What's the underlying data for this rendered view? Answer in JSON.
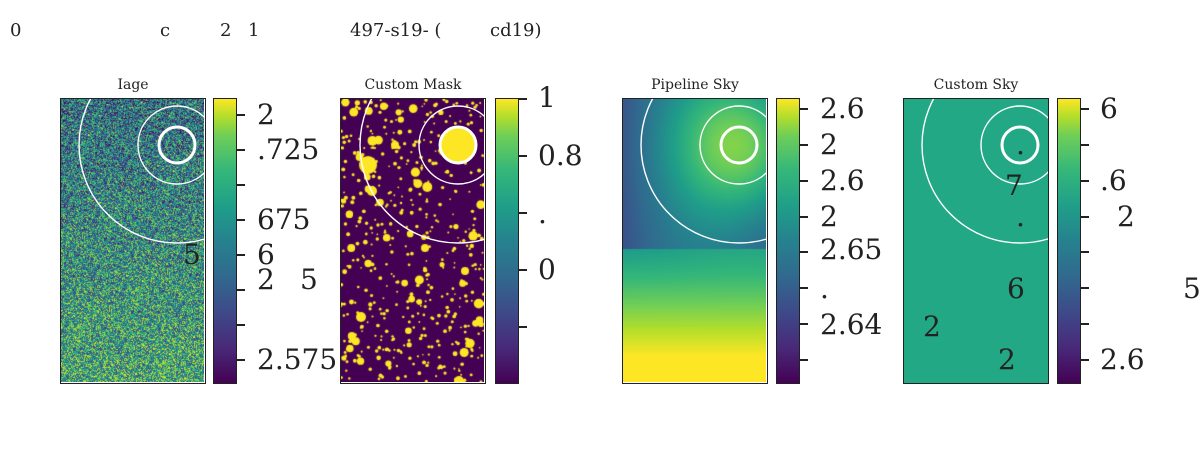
{
  "figure": {
    "suptitle_parts": [
      "0",
      "c",
      "2",
      "1",
      "497-s19- (",
      "cd19)"
    ],
    "stray_labels": [
      "5",
      "5"
    ]
  },
  "colors": {
    "circle": "#ffffff",
    "mask_fg": "#fde725",
    "mask_bg": "#440154",
    "custom_sky": "#22a884"
  },
  "chart_data": [
    {
      "type": "heatmap",
      "title": "Iage",
      "colormap": "viridis",
      "colorbar_tick_labels": [
        "2",
        ".725",
        "",
        "675",
        "6",
        "2",
        "",
        "2.575"
      ],
      "extra_labels": [
        "5",
        "5"
      ],
      "overlay_icons": [
        "aperture-circles"
      ]
    },
    {
      "type": "heatmap",
      "title": "Custom Mask",
      "colormap": "viridis",
      "colorbar_tick_labels": [
        "1",
        "0.8",
        ".",
        "0"
      ],
      "vlim": [
        0,
        1
      ],
      "overlay_icons": [
        "aperture-circles",
        "masked-sources"
      ]
    },
    {
      "type": "heatmap",
      "title": "Pipeline Sky",
      "colormap": "viridis",
      "colorbar_tick_labels": [
        "2.6",
        "2",
        "2.6",
        "2",
        "2.65",
        ".",
        "2.64",
        ""
      ],
      "overlay_icons": [
        "aperture-circles"
      ]
    },
    {
      "type": "heatmap",
      "title": "Custom Sky",
      "colormap": "viridis",
      "colorbar_tick_labels": [
        "6",
        "",
        ".6",
        "2",
        "",
        "",
        "",
        "2.6"
      ],
      "extra_labels": [
        ".",
        "7",
        ".",
        "6",
        "2",
        "2"
      ],
      "overlay_icons": [
        "aperture-circles"
      ]
    }
  ]
}
